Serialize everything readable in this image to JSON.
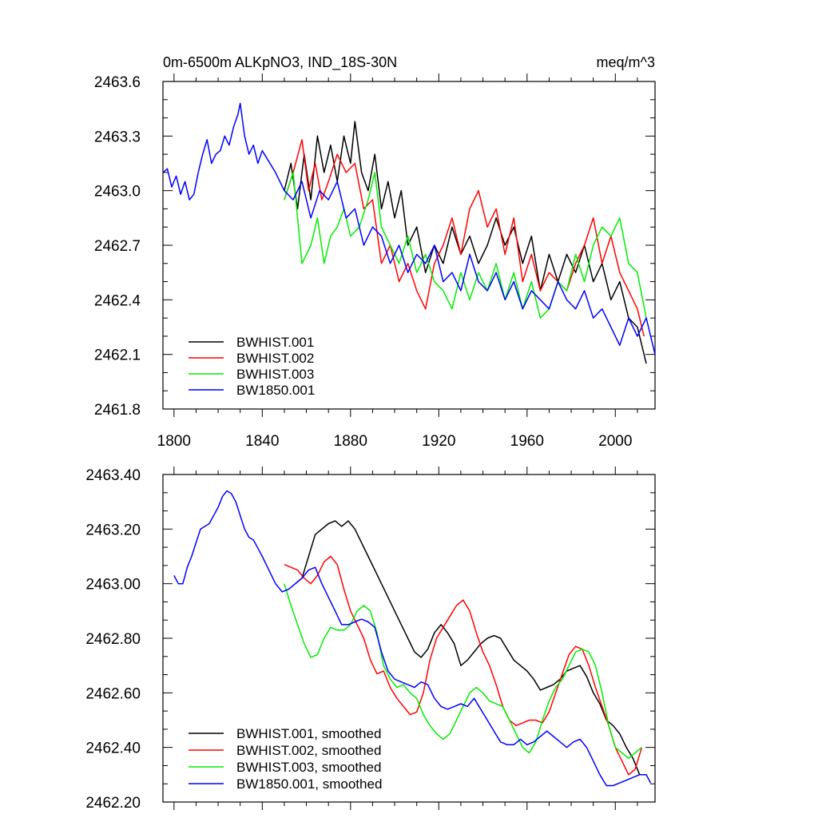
{
  "chart_data": [
    {
      "type": "line",
      "title_left": "0m-6500m ALKpNO3, IND_18S-30N",
      "title_right": "meq/m^3",
      "xlim": [
        1795,
        2018
      ],
      "ylim": [
        2461.8,
        2463.6
      ],
      "x_ticks": [
        1800,
        1840,
        1880,
        1920,
        1960,
        2000
      ],
      "x_tick_labels": [
        "1800",
        "1840",
        "1880",
        "1920",
        "1960",
        "2000"
      ],
      "y_ticks": [
        2461.8,
        2462.1,
        2462.4,
        2462.7,
        2463.0,
        2463.3,
        2463.6
      ],
      "y_tick_labels": [
        "2461.8",
        "2462.1",
        "2462.4",
        "2462.7",
        "2463.0",
        "2463.3",
        "2463.6"
      ],
      "legend_position": "bottom-left",
      "series": [
        {
          "name": "BWHIST.001",
          "color": "#000000",
          "x": [
            1850,
            1853,
            1856,
            1859,
            1862,
            1865,
            1868,
            1871,
            1874,
            1877,
            1880,
            1882,
            1885,
            1888,
            1891,
            1894,
            1897,
            1900,
            1903,
            1906,
            1910,
            1914,
            1918,
            1922,
            1926,
            1930,
            1934,
            1938,
            1942,
            1946,
            1950,
            1954,
            1958,
            1962,
            1966,
            1970,
            1974,
            1978,
            1982,
            1986,
            1990,
            1994,
            1998,
            2002,
            2006,
            2010,
            2014
          ],
          "y": [
            2463.0,
            2463.15,
            2462.9,
            2463.2,
            2462.95,
            2463.3,
            2463.1,
            2463.25,
            2463.05,
            2463.3,
            2463.15,
            2463.38,
            2463.1,
            2463.0,
            2463.2,
            2462.9,
            2463.05,
            2462.85,
            2463.0,
            2462.7,
            2462.8,
            2462.55,
            2462.7,
            2462.6,
            2462.8,
            2462.65,
            2462.75,
            2462.6,
            2462.7,
            2462.85,
            2462.7,
            2462.8,
            2462.6,
            2462.75,
            2462.45,
            2462.65,
            2462.5,
            2462.65,
            2462.55,
            2462.7,
            2462.5,
            2462.6,
            2462.4,
            2462.5,
            2462.3,
            2462.25,
            2462.05
          ]
        },
        {
          "name": "BWHIST.002",
          "color": "#ff0000",
          "x": [
            1850,
            1854,
            1858,
            1861,
            1864,
            1867,
            1870,
            1874,
            1878,
            1882,
            1886,
            1890,
            1894,
            1898,
            1902,
            1906,
            1910,
            1914,
            1918,
            1922,
            1926,
            1930,
            1934,
            1938,
            1942,
            1946,
            1950,
            1954,
            1958,
            1962,
            1966,
            1970,
            1974,
            1978,
            1982,
            1986,
            1990,
            1994,
            1998,
            2002,
            2006,
            2010,
            2013
          ],
          "y": [
            2462.95,
            2463.1,
            2463.28,
            2463.0,
            2463.15,
            2462.95,
            2463.05,
            2463.2,
            2463.1,
            2463.15,
            2462.9,
            2462.95,
            2462.6,
            2462.7,
            2462.5,
            2462.6,
            2462.45,
            2462.35,
            2462.6,
            2462.7,
            2462.85,
            2462.65,
            2462.9,
            2463.0,
            2462.8,
            2462.9,
            2462.65,
            2462.85,
            2462.5,
            2462.65,
            2462.45,
            2462.55,
            2462.5,
            2462.45,
            2462.6,
            2462.7,
            2462.85,
            2462.6,
            2462.75,
            2462.55,
            2462.45,
            2462.35,
            2462.2
          ]
        },
        {
          "name": "BWHIST.003",
          "color": "#00ee00",
          "x": [
            1850,
            1854,
            1858,
            1862,
            1865,
            1868,
            1871,
            1874,
            1877,
            1880,
            1884,
            1888,
            1891,
            1894,
            1898,
            1902,
            1906,
            1910,
            1914,
            1918,
            1922,
            1926,
            1930,
            1934,
            1938,
            1942,
            1946,
            1950,
            1954,
            1958,
            1962,
            1966,
            1970,
            1974,
            1978,
            1982,
            1986,
            1990,
            1994,
            1998,
            2002,
            2006,
            2010,
            2014
          ],
          "y": [
            2462.95,
            2463.1,
            2462.6,
            2462.7,
            2462.85,
            2462.6,
            2462.75,
            2462.8,
            2462.9,
            2462.75,
            2462.8,
            2462.95,
            2463.1,
            2462.8,
            2462.7,
            2462.6,
            2462.75,
            2462.55,
            2462.65,
            2462.5,
            2462.45,
            2462.35,
            2462.55,
            2462.4,
            2462.55,
            2462.45,
            2462.6,
            2462.4,
            2462.55,
            2462.35,
            2462.5,
            2462.3,
            2462.35,
            2462.5,
            2462.45,
            2462.65,
            2462.5,
            2462.7,
            2462.8,
            2462.75,
            2462.85,
            2462.6,
            2462.55,
            2462.3
          ]
        },
        {
          "name": "BW1850.001",
          "color": "#0000ff",
          "x": [
            1795,
            1797,
            1799,
            1801,
            1803,
            1805,
            1807,
            1809,
            1811,
            1813,
            1815,
            1817,
            1819,
            1821,
            1823,
            1825,
            1827,
            1829,
            1830,
            1832,
            1834,
            1836,
            1838,
            1840,
            1842,
            1846,
            1850,
            1854,
            1858,
            1862,
            1866,
            1870,
            1874,
            1878,
            1882,
            1886,
            1890,
            1894,
            1898,
            1902,
            1906,
            1910,
            1914,
            1918,
            1922,
            1926,
            1930,
            1934,
            1938,
            1942,
            1946,
            1950,
            1954,
            1958,
            1962,
            1966,
            1970,
            1974,
            1978,
            1982,
            1986,
            1990,
            1994,
            1998,
            2002,
            2006,
            2010,
            2014,
            2018
          ],
          "y": [
            2463.1,
            2463.12,
            2463.02,
            2463.08,
            2462.98,
            2463.05,
            2462.95,
            2462.98,
            2463.1,
            2463.2,
            2463.28,
            2463.15,
            2463.2,
            2463.22,
            2463.3,
            2463.25,
            2463.35,
            2463.42,
            2463.48,
            2463.3,
            2463.2,
            2463.25,
            2463.15,
            2463.22,
            2463.18,
            2463.1,
            2463.0,
            2462.95,
            2463.05,
            2462.85,
            2463.0,
            2462.95,
            2463.05,
            2462.85,
            2462.9,
            2462.7,
            2462.8,
            2462.75,
            2462.6,
            2462.7,
            2462.55,
            2462.65,
            2462.6,
            2462.7,
            2462.5,
            2462.55,
            2462.45,
            2462.65,
            2462.5,
            2462.45,
            2462.55,
            2462.4,
            2462.5,
            2462.35,
            2462.45,
            2462.4,
            2462.35,
            2462.5,
            2462.4,
            2462.35,
            2462.45,
            2462.3,
            2462.35,
            2462.25,
            2462.15,
            2462.3,
            2462.2,
            2462.3,
            2462.1
          ]
        }
      ]
    },
    {
      "type": "line",
      "xlim": [
        1795,
        2018
      ],
      "ylim": [
        2462.2,
        2463.4
      ],
      "x_ticks": [
        1800,
        1840,
        1880,
        1920,
        1960,
        2000
      ],
      "y_ticks": [
        2462.2,
        2462.4,
        2462.6,
        2462.8,
        2463.0,
        2463.2,
        2463.4
      ],
      "y_tick_labels": [
        "2462.20",
        "2462.40",
        "2462.60",
        "2462.80",
        "2463.00",
        "2463.20",
        "2463.40"
      ],
      "legend_position": "bottom-left",
      "series": [
        {
          "name": "BWHIST.001, smoothed",
          "color": "#000000",
          "x": [
            1855,
            1858,
            1861,
            1864,
            1867,
            1870,
            1873,
            1876,
            1879,
            1882,
            1885,
            1888,
            1891,
            1894,
            1897,
            1900,
            1903,
            1906,
            1909,
            1912,
            1915,
            1918,
            1921,
            1924,
            1927,
            1930,
            1933,
            1936,
            1939,
            1942,
            1945,
            1948,
            1951,
            1954,
            1957,
            1960,
            1963,
            1966,
            1969,
            1972,
            1975,
            1978,
            1981,
            1984,
            1987,
            1990,
            1993,
            1996,
            1999,
            2002,
            2005,
            2008,
            2011
          ],
          "y": [
            2463.0,
            2463.02,
            2463.1,
            2463.18,
            2463.2,
            2463.22,
            2463.23,
            2463.21,
            2463.23,
            2463.2,
            2463.15,
            2463.1,
            2463.05,
            2463.0,
            2462.95,
            2462.9,
            2462.85,
            2462.8,
            2462.75,
            2462.73,
            2462.76,
            2462.82,
            2462.85,
            2462.82,
            2462.78,
            2462.7,
            2462.72,
            2462.75,
            2462.78,
            2462.8,
            2462.81,
            2462.8,
            2462.76,
            2462.72,
            2462.7,
            2462.68,
            2462.65,
            2462.61,
            2462.62,
            2462.63,
            2462.65,
            2462.68,
            2462.69,
            2462.7,
            2462.66,
            2462.6,
            2462.56,
            2462.5,
            2462.48,
            2462.45,
            2462.4,
            2462.36,
            2462.3
          ]
        },
        {
          "name": "BWHIST.002, smoothed",
          "color": "#ff0000",
          "x": [
            1850,
            1853,
            1856,
            1859,
            1862,
            1865,
            1868,
            1871,
            1874,
            1877,
            1880,
            1883,
            1886,
            1889,
            1892,
            1895,
            1898,
            1901,
            1904,
            1907,
            1910,
            1913,
            1916,
            1919,
            1922,
            1925,
            1928,
            1931,
            1934,
            1937,
            1940,
            1943,
            1946,
            1949,
            1952,
            1955,
            1958,
            1961,
            1964,
            1967,
            1970,
            1973,
            1976,
            1979,
            1982,
            1985,
            1988,
            1991,
            1994,
            1997,
            2000,
            2003,
            2006,
            2009,
            2012
          ],
          "y": [
            2463.07,
            2463.06,
            2463.05,
            2463.02,
            2463.0,
            2463.03,
            2463.08,
            2463.1,
            2463.07,
            2462.98,
            2462.9,
            2462.85,
            2462.8,
            2462.72,
            2462.67,
            2462.68,
            2462.62,
            2462.58,
            2462.55,
            2462.52,
            2462.53,
            2462.6,
            2462.72,
            2462.8,
            2462.84,
            2462.88,
            2462.92,
            2462.94,
            2462.9,
            2462.82,
            2462.75,
            2462.7,
            2462.63,
            2462.55,
            2462.5,
            2462.48,
            2462.49,
            2462.5,
            2462.5,
            2462.49,
            2462.53,
            2462.6,
            2462.67,
            2462.74,
            2462.77,
            2462.76,
            2462.7,
            2462.62,
            2462.55,
            2462.48,
            2462.4,
            2462.35,
            2462.3,
            2462.32,
            2462.4
          ]
        },
        {
          "name": "BWHIST.003, smoothed",
          "color": "#00ee00",
          "x": [
            1850,
            1853,
            1856,
            1859,
            1862,
            1865,
            1868,
            1871,
            1874,
            1877,
            1880,
            1883,
            1886,
            1889,
            1892,
            1895,
            1898,
            1901,
            1904,
            1907,
            1910,
            1913,
            1916,
            1919,
            1922,
            1925,
            1928,
            1931,
            1934,
            1937,
            1940,
            1943,
            1946,
            1949,
            1952,
            1955,
            1958,
            1961,
            1964,
            1967,
            1970,
            1973,
            1976,
            1979,
            1982,
            1985,
            1988,
            1991,
            1994,
            1997,
            2000,
            2003,
            2006,
            2009,
            2012
          ],
          "y": [
            2463.0,
            2462.92,
            2462.85,
            2462.78,
            2462.73,
            2462.74,
            2462.8,
            2462.84,
            2462.83,
            2462.83,
            2462.85,
            2462.9,
            2462.92,
            2462.9,
            2462.82,
            2462.7,
            2462.65,
            2462.62,
            2462.63,
            2462.6,
            2462.58,
            2462.52,
            2462.48,
            2462.45,
            2462.43,
            2462.45,
            2462.5,
            2462.55,
            2462.6,
            2462.62,
            2462.6,
            2462.57,
            2462.56,
            2462.55,
            2462.5,
            2462.45,
            2462.4,
            2462.38,
            2462.42,
            2462.5,
            2462.57,
            2462.62,
            2462.65,
            2462.7,
            2462.75,
            2462.76,
            2462.75,
            2462.7,
            2462.6,
            2462.48,
            2462.4,
            2462.38,
            2462.36,
            2462.38,
            2462.4
          ]
        },
        {
          "name": "BW1850.001, smoothed",
          "color": "#0000ff",
          "x": [
            1800,
            1802,
            1804,
            1806,
            1808,
            1810,
            1812,
            1814,
            1816,
            1818,
            1820,
            1822,
            1824,
            1826,
            1828,
            1830,
            1832,
            1834,
            1836,
            1838,
            1840,
            1843,
            1846,
            1849,
            1852,
            1855,
            1858,
            1861,
            1864,
            1867,
            1870,
            1873,
            1876,
            1879,
            1882,
            1885,
            1888,
            1891,
            1894,
            1897,
            1900,
            1903,
            1906,
            1909,
            1912,
            1915,
            1918,
            1921,
            1924,
            1927,
            1930,
            1933,
            1936,
            1939,
            1942,
            1945,
            1948,
            1951,
            1954,
            1957,
            1960,
            1963,
            1966,
            1969,
            1972,
            1975,
            1978,
            1981,
            1984,
            1987,
            1990,
            1993,
            1996,
            1999,
            2002,
            2005,
            2008,
            2011,
            2014,
            2016
          ],
          "y": [
            2463.03,
            2463.0,
            2463.0,
            2463.06,
            2463.1,
            2463.15,
            2463.2,
            2463.21,
            2463.22,
            2463.25,
            2463.28,
            2463.32,
            2463.34,
            2463.33,
            2463.3,
            2463.25,
            2463.2,
            2463.17,
            2463.16,
            2463.13,
            2463.1,
            2463.05,
            2463.0,
            2462.97,
            2462.98,
            2463.0,
            2463.02,
            2463.05,
            2463.06,
            2463.0,
            2462.95,
            2462.9,
            2462.85,
            2462.85,
            2462.86,
            2462.87,
            2462.86,
            2462.84,
            2462.75,
            2462.68,
            2462.65,
            2462.64,
            2462.63,
            2462.62,
            2462.64,
            2462.63,
            2462.58,
            2462.55,
            2462.54,
            2462.55,
            2462.56,
            2462.55,
            2462.58,
            2462.54,
            2462.5,
            2462.46,
            2462.42,
            2462.41,
            2462.41,
            2462.43,
            2462.41,
            2462.42,
            2462.44,
            2462.46,
            2462.44,
            2462.42,
            2462.4,
            2462.42,
            2462.43,
            2462.4,
            2462.35,
            2462.3,
            2462.26,
            2462.26,
            2462.27,
            2462.28,
            2462.29,
            2462.3,
            2462.3,
            2462.27
          ]
        }
      ]
    }
  ]
}
